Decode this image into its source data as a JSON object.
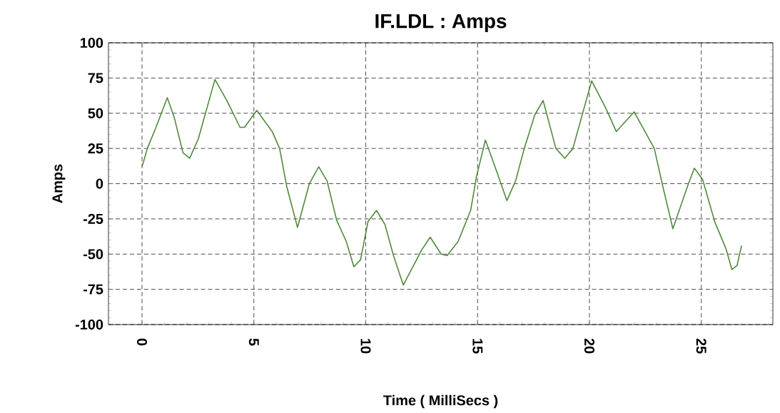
{
  "chart_data": {
    "type": "line",
    "title": "IF.LDL : Amps",
    "xlabel": "Time ( MilliSecs )",
    "ylabel": "Amps",
    "xlim": [
      -1.5,
      28.2
    ],
    "ylim": [
      -100,
      100
    ],
    "xticks": [
      0,
      5,
      10,
      15,
      20,
      25
    ],
    "yticks": [
      -100,
      -75,
      -50,
      -25,
      0,
      25,
      50,
      75,
      100
    ],
    "grid": true,
    "marker": "none",
    "line_style": "solid",
    "series": [
      {
        "color": "#4f8a3c",
        "x": [
          0,
          0.26,
          0.6,
          1.13,
          1.44,
          1.83,
          2.13,
          2.52,
          3.26,
          3.79,
          4.38,
          4.58,
          5.13,
          5.82,
          6.15,
          6.47,
          6.95,
          7.48,
          7.9,
          8.27,
          8.7,
          9.13,
          9.47,
          9.77,
          10.1,
          10.48,
          10.86,
          11.24,
          11.68,
          12.5,
          12.88,
          13.37,
          13.64,
          14.13,
          14.69,
          14.95,
          15.35,
          15.87,
          16.31,
          16.7,
          17.07,
          17.56,
          17.93,
          18.5,
          18.9,
          19.26,
          20.1,
          20.72,
          21.2,
          22,
          22.9,
          23.28,
          23.73,
          24.38,
          24.69,
          25.06,
          25.6,
          26.1,
          26.37,
          26.6,
          26.8
        ],
        "values": [
          12,
          26,
          39,
          61,
          47,
          22,
          18,
          32,
          74,
          59,
          40,
          40,
          52,
          37,
          25,
          -2,
          -31,
          0,
          12,
          2,
          -26,
          -41,
          -59,
          -54,
          -27,
          -19,
          -29,
          -51,
          -72,
          -47,
          -38,
          -50,
          -51,
          -41,
          -19,
          5,
          31,
          8,
          -12,
          2,
          24,
          49,
          59,
          25,
          18,
          25,
          73,
          54,
          37,
          51,
          25,
          -2,
          -32,
          -2,
          11,
          3,
          -27,
          -46,
          -61,
          -58,
          -44
        ]
      }
    ]
  }
}
